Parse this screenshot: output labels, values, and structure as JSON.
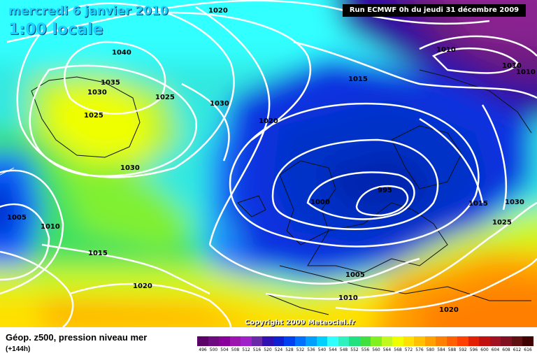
{
  "header": {
    "date": "mercredi 6 janvier 2010",
    "local_time": "1:00 locale",
    "run": "Run ECMWF 0h du jeudi 31 décembre 2009"
  },
  "copyright": "Copyright 2009 Meteociel.fr",
  "isobar_labels": [
    "1020",
    "1040",
    "1035",
    "1030",
    "1025",
    "1025",
    "1030",
    "1030",
    "1020",
    "1015",
    "1010",
    "1010",
    "1010",
    "995",
    "1000",
    "1015",
    "1030",
    "1025",
    "1005",
    "1010",
    "1015",
    "1020",
    "1005",
    "1010",
    "1020"
  ],
  "footer": {
    "title": "Géop. z500, pression niveau mer",
    "lead": "(+144h)"
  },
  "legend": {
    "values": [
      "496",
      "500",
      "504",
      "508",
      "512",
      "516",
      "520",
      "524",
      "528",
      "532",
      "536",
      "540",
      "544",
      "548",
      "552",
      "556",
      "560",
      "564",
      "568",
      "572",
      "576",
      "580",
      "584",
      "588",
      "592",
      "596",
      "600",
      "604",
      "608",
      "612",
      "616"
    ],
    "colors": [
      "#5a0066",
      "#6e0a80",
      "#880099",
      "#9a14ad",
      "#a020c8",
      "#6a2aa8",
      "#3010b0",
      "#1020d0",
      "#0040f0",
      "#0070ff",
      "#00a0ff",
      "#00d0ff",
      "#30ffff",
      "#30f0c0",
      "#20e080",
      "#40e040",
      "#80f020",
      "#c0f820",
      "#f0ff00",
      "#ffe000",
      "#ffc000",
      "#ffa000",
      "#ff8000",
      "#ff6000",
      "#ff4000",
      "#e02000",
      "#c01010",
      "#a01020",
      "#801020",
      "#601010",
      "#400000"
    ]
  }
}
